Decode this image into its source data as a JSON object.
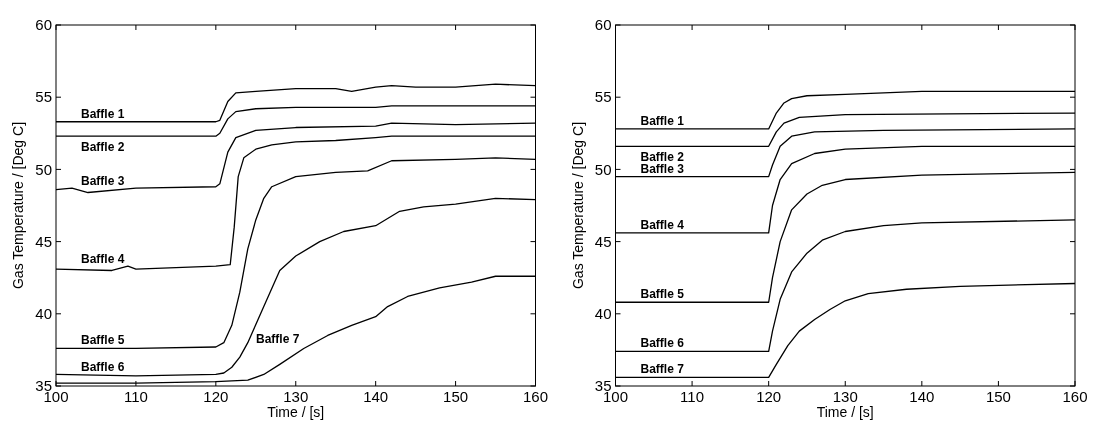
{
  "chart_data": [
    {
      "type": "line",
      "xlabel": "Time / [s]",
      "ylabel": "Gas Temperature / [Deg C]",
      "xlim": [
        100,
        160
      ],
      "ylim": [
        35,
        60
      ],
      "xticks": [
        100,
        110,
        120,
        130,
        140,
        150,
        160
      ],
      "yticks": [
        35,
        40,
        45,
        50,
        55,
        60
      ],
      "grid": false,
      "legend": false,
      "line_style": "solid",
      "series": [
        {
          "name": "Baffle 1",
          "color": "#000000",
          "x": [
            100,
            120,
            120.5,
            121.5,
            122.5,
            125,
            130,
            135,
            137,
            140,
            142,
            145,
            150,
            155,
            160
          ],
          "values": [
            53.3,
            53.3,
            53.4,
            54.7,
            55.3,
            55.4,
            55.6,
            55.6,
            55.4,
            55.7,
            55.8,
            55.7,
            55.7,
            55.9,
            55.8
          ]
        },
        {
          "name": "Baffle 2",
          "color": "#000000",
          "x": [
            100,
            120,
            120.5,
            121.5,
            122.5,
            125,
            130,
            140,
            142,
            150,
            160
          ],
          "values": [
            52.3,
            52.3,
            52.5,
            53.5,
            54.0,
            54.2,
            54.3,
            54.3,
            54.4,
            54.4,
            54.4
          ]
        },
        {
          "name": "Baffle 3",
          "color": "#000000",
          "x": [
            100,
            102,
            104,
            110,
            120,
            120.5,
            121.5,
            122.5,
            125,
            130,
            140,
            142,
            150,
            160
          ],
          "values": [
            48.6,
            48.7,
            48.4,
            48.7,
            48.8,
            49.0,
            51.2,
            52.2,
            52.7,
            52.9,
            53.0,
            53.2,
            53.1,
            53.2
          ]
        },
        {
          "name": "Baffle 4",
          "color": "#000000",
          "x": [
            100,
            107,
            109,
            110,
            120,
            121.8,
            122.3,
            122.8,
            123.5,
            125,
            127,
            130,
            135,
            140,
            142,
            150,
            160
          ],
          "values": [
            43.1,
            43.0,
            43.3,
            43.1,
            43.3,
            43.4,
            46,
            49.5,
            50.8,
            51.4,
            51.7,
            51.9,
            52.0,
            52.2,
            52.3,
            52.3,
            52.3
          ]
        },
        {
          "name": "Baffle 5",
          "color": "#000000",
          "x": [
            100,
            110,
            120,
            121,
            122,
            123,
            124,
            125,
            126,
            127,
            130,
            135,
            139,
            142,
            150,
            155,
            160
          ],
          "values": [
            37.6,
            37.6,
            37.7,
            38.0,
            39.2,
            41.5,
            44.5,
            46.5,
            48.0,
            48.8,
            49.5,
            49.8,
            49.9,
            50.6,
            50.7,
            50.8,
            50.7
          ]
        },
        {
          "name": "Baffle 6",
          "color": "#000000",
          "x": [
            100,
            110,
            120,
            121,
            122,
            123,
            124,
            126,
            128,
            130,
            133,
            136,
            140,
            143,
            146,
            150,
            155,
            160
          ],
          "values": [
            35.8,
            35.7,
            35.8,
            35.9,
            36.3,
            37.0,
            38.0,
            40.5,
            43.0,
            44.0,
            45.0,
            45.7,
            46.1,
            47.1,
            47.4,
            47.6,
            48.0,
            47.9
          ]
        },
        {
          "name": "Baffle 7",
          "color": "#000000",
          "x": [
            100,
            110,
            120,
            124,
            126,
            128,
            131,
            134,
            137,
            140,
            141.5,
            144,
            148,
            152,
            155,
            160
          ],
          "values": [
            35.2,
            35.2,
            35.3,
            35.4,
            35.8,
            36.5,
            37.6,
            38.5,
            39.2,
            39.8,
            40.5,
            41.2,
            41.8,
            42.2,
            42.6,
            42.6
          ]
        }
      ]
    },
    {
      "type": "line",
      "xlabel": "Time / [s]",
      "ylabel": "Gas Temperature / [Deg C]",
      "xlim": [
        100,
        160
      ],
      "ylim": [
        35,
        60
      ],
      "xticks": [
        100,
        110,
        120,
        130,
        140,
        150,
        160
      ],
      "yticks": [
        35,
        40,
        45,
        50,
        55,
        60
      ],
      "grid": false,
      "legend": false,
      "line_style": "solid",
      "series": [
        {
          "name": "Baffle 1",
          "color": "#000000",
          "x": [
            100,
            120,
            121,
            122,
            123,
            125,
            130,
            140,
            160
          ],
          "values": [
            52.8,
            52.8,
            53.9,
            54.6,
            54.9,
            55.1,
            55.2,
            55.4,
            55.4
          ]
        },
        {
          "name": "Baffle 2",
          "color": "#000000",
          "x": [
            100,
            120,
            121,
            122,
            124,
            130,
            160
          ],
          "values": [
            51.6,
            51.6,
            52.6,
            53.2,
            53.6,
            53.8,
            53.9
          ]
        },
        {
          "name": "Baffle 3",
          "color": "#000000",
          "x": [
            100,
            120,
            120.5,
            121.5,
            123,
            126,
            135,
            160
          ],
          "values": [
            49.5,
            49.5,
            50.3,
            51.6,
            52.3,
            52.6,
            52.7,
            52.8
          ]
        },
        {
          "name": "Baffle 4",
          "color": "#000000",
          "x": [
            100,
            120,
            120.5,
            121.5,
            123,
            126,
            130,
            140,
            160
          ],
          "values": [
            45.6,
            45.6,
            47.5,
            49.3,
            50.4,
            51.1,
            51.4,
            51.6,
            51.6
          ]
        },
        {
          "name": "Baffle 5",
          "color": "#000000",
          "x": [
            100,
            120,
            120.5,
            121.5,
            123,
            125,
            127,
            130,
            140,
            160
          ],
          "values": [
            40.8,
            40.8,
            42.5,
            45.0,
            47.2,
            48.3,
            48.9,
            49.3,
            49.6,
            49.8
          ]
        },
        {
          "name": "Baffle 6",
          "color": "#000000",
          "x": [
            100,
            120,
            120.5,
            121.5,
            123,
            125,
            127,
            130,
            135,
            140,
            160
          ],
          "values": [
            37.4,
            37.4,
            38.8,
            41.0,
            42.9,
            44.2,
            45.1,
            45.7,
            46.1,
            46.3,
            46.5
          ]
        },
        {
          "name": "Baffle 7",
          "color": "#000000",
          "x": [
            100,
            120,
            121,
            122.5,
            124,
            126,
            128,
            130,
            133,
            138,
            145,
            160
          ],
          "values": [
            35.6,
            35.6,
            36.5,
            37.8,
            38.8,
            39.6,
            40.3,
            40.9,
            41.4,
            41.7,
            41.9,
            42.1
          ]
        }
      ]
    }
  ]
}
